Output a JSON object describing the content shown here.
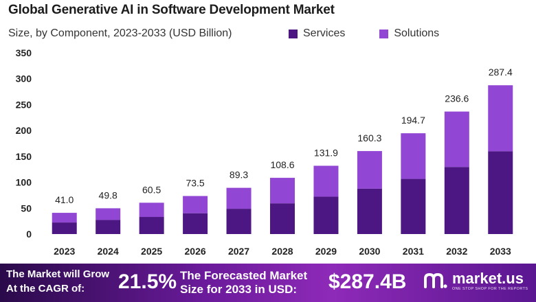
{
  "chart_data": {
    "type": "bar",
    "stacked": true,
    "title": "Global Generative AI in Software Development Market",
    "subtitle": "Size, by Component, 2023-2033 (USD Billion)",
    "categories": [
      "2023",
      "2024",
      "2025",
      "2026",
      "2027",
      "2028",
      "2029",
      "2030",
      "2031",
      "2032",
      "2033"
    ],
    "series": [
      {
        "name": "Services",
        "color": "#4c1683",
        "values": [
          22.4,
          27.3,
          33.1,
          40.2,
          48.9,
          59.4,
          72.2,
          87.7,
          106.6,
          129.6,
          160.0
        ]
      },
      {
        "name": "Solutions",
        "color": "#9146d4",
        "values": [
          18.6,
          22.5,
          27.4,
          33.3,
          40.4,
          49.2,
          59.7,
          72.6,
          88.1,
          107.0,
          127.4
        ]
      }
    ],
    "totals": [
      "41.0",
      "49.8",
      "60.5",
      "73.5",
      "89.3",
      "108.6",
      "131.9",
      "160.3",
      "194.7",
      "236.6",
      "287.4"
    ],
    "yticks": [
      0,
      50,
      100,
      150,
      200,
      250,
      300,
      350
    ],
    "ylim": [
      0,
      350
    ],
    "xlabel": "",
    "ylabel": "",
    "grid": false,
    "legend": "top-right"
  },
  "footer": {
    "cagr_line1": "The Market will Grow",
    "cagr_line2": "At the CAGR of:",
    "cagr_value": "21.5%",
    "forecast_line1": "The Forecasted Market",
    "forecast_line2": "Size for 2033 in USD:",
    "forecast_value": "$287.4B",
    "brand_name": "market.us",
    "brand_tagline": "ONE STOP SHOP FOR THE REPORTS"
  },
  "colors": {
    "services": "#4c1683",
    "solutions": "#9146d4"
  }
}
